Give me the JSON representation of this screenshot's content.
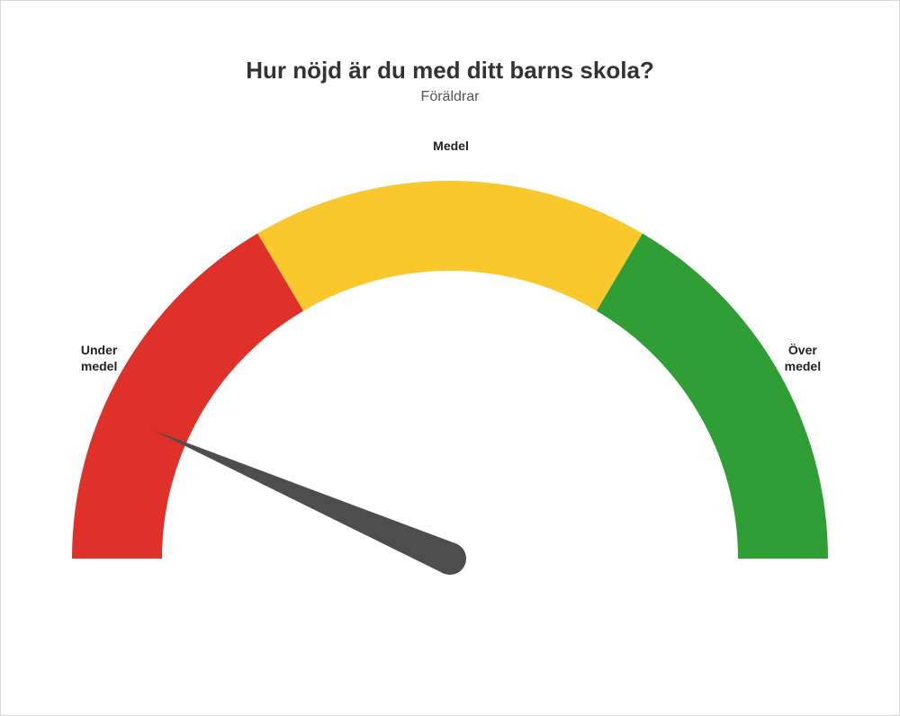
{
  "title": "Hur nöjd är du med ditt barns skola?",
  "subtitle": "Föräldrar",
  "gauge": {
    "type": "gauge",
    "min": 0,
    "max": 100,
    "value": 13,
    "zones": [
      {
        "from": 0,
        "to": 33,
        "color": "#dd3129",
        "label": "Under\nmedel"
      },
      {
        "from": 33,
        "to": 67,
        "color": "#f8c82c",
        "label": "Medel"
      },
      {
        "from": 67,
        "to": 100,
        "color": "#2f9e34",
        "label": "Över\nmedel"
      }
    ],
    "outer_radius": 420,
    "inner_radius": 320,
    "needle_color": "#4d4d4d",
    "needle_length": 360,
    "background_color": "#ffffff",
    "border_color": "#d9d9d9",
    "title_fontsize": 26,
    "title_color": "#333333",
    "subtitle_fontsize": 16,
    "subtitle_color": "#555555",
    "label_fontsize": 14,
    "label_fontweight": 700,
    "label_color": "#222222"
  }
}
